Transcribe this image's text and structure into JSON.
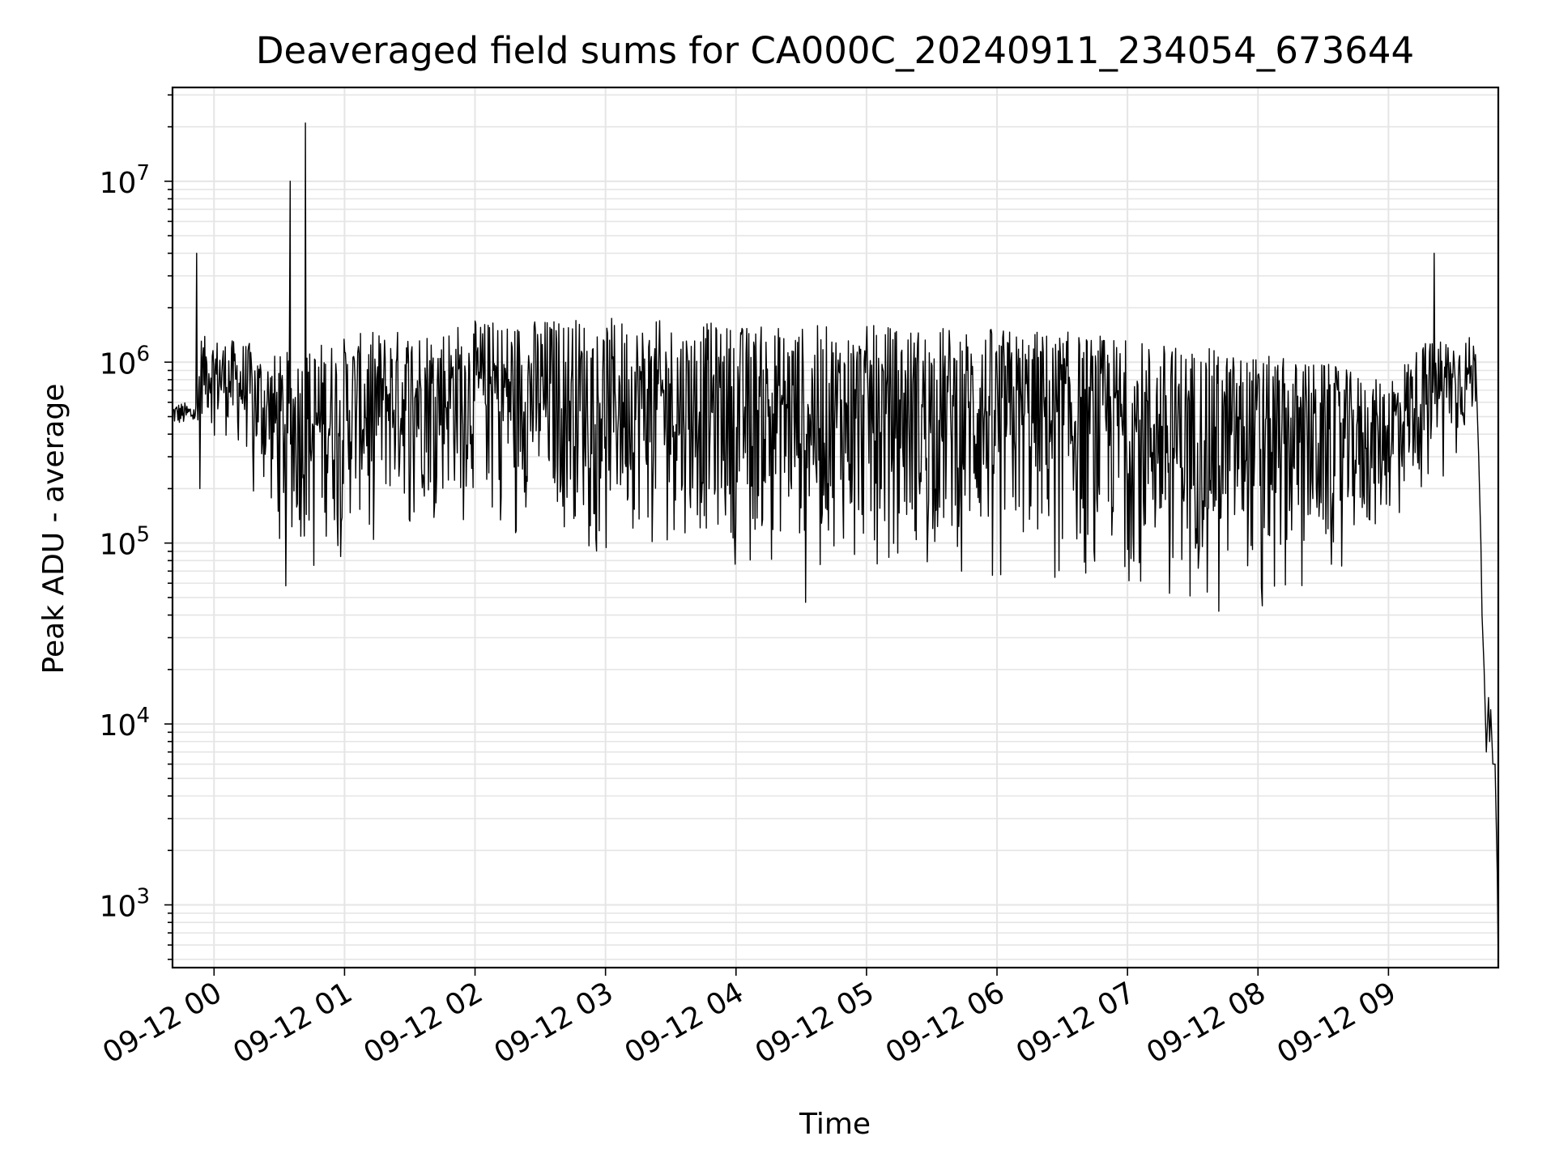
{
  "chart_data": {
    "type": "line",
    "title": "Deaveraged field sums for CA000C_20240911_234054_673644",
    "xlabel": "Time",
    "ylabel": "Peak ADU - average",
    "yscale": "log",
    "ylim": [
      450,
      33000000
    ],
    "xlim": [
      "2024-09-11 23:40:54",
      "2024-09-12 09:50:30"
    ],
    "grid": true,
    "line_color": "#000000",
    "grid_color": "#e5e5e5",
    "x_ticks": [
      {
        "value": "2024-09-12 00:00",
        "label": "09-12 00"
      },
      {
        "value": "2024-09-12 01:00",
        "label": "09-12 01"
      },
      {
        "value": "2024-09-12 02:00",
        "label": "09-12 02"
      },
      {
        "value": "2024-09-12 03:00",
        "label": "09-12 03"
      },
      {
        "value": "2024-09-12 04:00",
        "label": "09-12 04"
      },
      {
        "value": "2024-09-12 05:00",
        "label": "09-12 05"
      },
      {
        "value": "2024-09-12 06:00",
        "label": "09-12 06"
      },
      {
        "value": "2024-09-12 07:00",
        "label": "09-12 07"
      },
      {
        "value": "2024-09-12 08:00",
        "label": "09-12 08"
      },
      {
        "value": "2024-09-12 09:00",
        "label": "09-12 09"
      }
    ],
    "y_ticks": [
      {
        "value": 1000,
        "base": "10",
        "exp": "3"
      },
      {
        "value": 10000,
        "base": "10",
        "exp": "4"
      },
      {
        "value": 100000,
        "base": "10",
        "exp": "5"
      },
      {
        "value": 1000000,
        "base": "10",
        "exp": "6"
      },
      {
        "value": 10000000,
        "base": "10",
        "exp": "7"
      }
    ],
    "envelope": {
      "x": [
        "2024-09-11 23:40:54",
        "2024-09-11 23:52:00",
        "2024-09-11 23:54:00",
        "2024-09-12 00:15:00",
        "2024-09-12 00:30:00",
        "2024-09-12 00:45:00",
        "2024-09-12 01:15:00",
        "2024-09-12 02:00:00",
        "2024-09-12 02:45:00",
        "2024-09-12 03:30:00",
        "2024-09-12 04:15:00",
        "2024-09-12 05:00:00",
        "2024-09-12 05:45:00",
        "2024-09-12 06:30:00",
        "2024-09-12 07:15:00",
        "2024-09-12 08:00:00",
        "2024-09-12 08:30:00",
        "2024-09-12 08:55:00",
        "2024-09-12 09:20:00",
        "2024-09-12 09:38:00",
        "2024-09-12 09:40:00"
      ],
      "low": [
        450000,
        450000,
        500000,
        300000,
        110000,
        90000,
        150000,
        180000,
        130000,
        110000,
        100000,
        90000,
        90000,
        90000,
        70000,
        70000,
        80000,
        110000,
        300000,
        400000,
        500000
      ],
      "high": [
        600000,
        600000,
        1400000,
        1300000,
        1100000,
        1300000,
        1500000,
        1700000,
        1800000,
        1700000,
        1600000,
        1600000,
        1600000,
        1500000,
        1300000,
        1100000,
        1000000,
        800000,
        1400000,
        1400000,
        1300000
      ]
    },
    "tail": {
      "x": [
        "2024-09-12 09:40:00",
        "2024-09-12 09:41:30",
        "2024-09-12 09:42:30",
        "2024-09-12 09:43:00",
        "2024-09-12 09:44:00",
        "2024-09-12 09:45:00",
        "2024-09-12 09:46:00",
        "2024-09-12 09:46:30",
        "2024-09-12 09:47:00",
        "2024-09-12 09:48:00",
        "2024-09-12 09:49:00",
        "2024-09-12 09:50:00",
        "2024-09-12 09:50:30"
      ],
      "y": [
        1100000,
        300000,
        100000,
        40000,
        20000,
        7000,
        14000,
        8000,
        12000,
        6000,
        6000,
        1500,
        450
      ]
    },
    "spikes": [
      {
        "x": "2024-09-11 23:52:00",
        "y": 4000000
      },
      {
        "x": "2024-09-12 00:35:00",
        "y": 10000000
      },
      {
        "x": "2024-09-12 00:42:00",
        "y": 21000000
      },
      {
        "x": "2024-09-12 09:21:00",
        "y": 4000000
      }
    ],
    "dips": [
      {
        "x": "2024-09-11 23:53:30",
        "y": 200000
      },
      {
        "x": "2024-09-12 00:33:00",
        "y": 58000
      },
      {
        "x": "2024-09-12 04:32:00",
        "y": 47000
      },
      {
        "x": "2024-09-12 07:42:00",
        "y": 42000
      },
      {
        "x": "2024-09-12 08:02:00",
        "y": 45000
      }
    ]
  }
}
